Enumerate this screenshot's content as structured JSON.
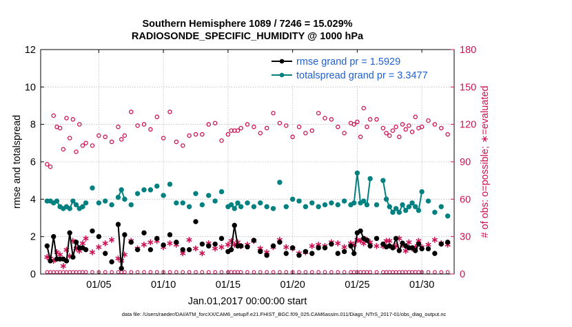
{
  "chart_data": {
    "type": "line",
    "title_line1": "Southern Hemisphere 1089 / 7246 = 15.029%",
    "title_line2": "RADIOSONDE_SPECIFIC_HUMIDITY @ 1000 hPa",
    "xlabel": "Jan.01,2017 00:00:00 start",
    "ylabel_left": "rmse and totalspread",
    "ylabel_right": "# of obs: o=possible; ∗=evaluated",
    "footer": "data file: /Users/raeder/DAI/ATM_forcXX/CAM6_setup/f.e21.FHIST_BGC.f09_025.CAM6assim.011/Diags_NTrS_2017-01/obs_diag_output.nc",
    "x_range_days": [
      0.5,
      32.5
    ],
    "y_left_range": [
      0,
      12
    ],
    "y_right_range": [
      0,
      180
    ],
    "x_ticks": [
      {
        "day": 5,
        "label": "01/05"
      },
      {
        "day": 10,
        "label": "01/10"
      },
      {
        "day": 15,
        "label": "01/15"
      },
      {
        "day": 20,
        "label": "01/20"
      },
      {
        "day": 25,
        "label": "01/25"
      },
      {
        "day": 30,
        "label": "01/30"
      }
    ],
    "y_left_ticks": [
      "0",
      "2",
      "4",
      "6",
      "8",
      "10",
      "12"
    ],
    "y_right_ticks": [
      "0",
      "30",
      "60",
      "90",
      "120",
      "150",
      "180"
    ],
    "legend": [
      {
        "label": "rmse grand pr = 1.5929",
        "color": "#000000"
      },
      {
        "label": "totalspread grand pr = 3.3477",
        "color": "#00807f"
      }
    ],
    "legend_placement": "top-right",
    "grid": true,
    "colors": {
      "rmse": "#000000",
      "totalspread": "#00807f",
      "obs": "#cc1155",
      "legend_text": "#1f5fd0",
      "right_axis": "#cc1155"
    },
    "series": [
      {
        "name": "rmse",
        "x": [
          1.0,
          1.25,
          1.5,
          1.75,
          2.0,
          2.25,
          2.5,
          2.75,
          3.0,
          3.25,
          3.5,
          3.75,
          4.0,
          4.5,
          5.0,
          5.5,
          6.0,
          6.5,
          6.75,
          7.0,
          7.5,
          8.0,
          8.5,
          9.0,
          9.5,
          10.0,
          10.5,
          11.0,
          11.5,
          12.0,
          12.5,
          13.0,
          13.5,
          14.0,
          14.5,
          15.0,
          15.25,
          15.5,
          15.75,
          16.0,
          16.5,
          17.0,
          17.5,
          18.0,
          18.5,
          19.0,
          19.5,
          20.0,
          20.5,
          21.0,
          21.5,
          22.0,
          22.5,
          23.0,
          23.5,
          24.0,
          24.5,
          24.75,
          25.0,
          25.25,
          25.5,
          25.75,
          26.0,
          26.5,
          27.0,
          27.25,
          27.5,
          27.75,
          28.0,
          28.25,
          28.5,
          28.75,
          29.0,
          29.25,
          29.5,
          29.75,
          30.0,
          30.5,
          31.0,
          31.5,
          32.0
        ],
        "y": [
          1.5,
          0.7,
          2.0,
          0.8,
          0.8,
          0.8,
          0.7,
          2.2,
          0.9,
          1.7,
          1.4,
          1.4,
          1.3,
          2.3,
          2.0,
          1.1,
          0.65,
          2.65,
          0.3,
          2.1,
          1.7,
          1.3,
          2.2,
          1.3,
          1.9,
          1.55,
          2.1,
          1.7,
          1.3,
          1.3,
          2.8,
          1.6,
          1.5,
          1.6,
          1.9,
          1.2,
          1.3,
          2.6,
          1.5,
          1.5,
          1.45,
          1.8,
          1.2,
          1.0,
          1.5,
          1.7,
          1.1,
          1.4,
          1.0,
          1.2,
          1.1,
          1.4,
          1.4,
          1.6,
          1.1,
          1.2,
          1.5,
          1.1,
          2.2,
          2.3,
          1.9,
          1.8,
          1.5,
          1.9,
          1.6,
          1.45,
          1.5,
          1.4,
          1.9,
          1.25,
          1.65,
          1.5,
          1.4,
          1.4,
          1.25,
          1.6,
          1.35,
          1.35,
          1.1,
          1.6,
          1.7
        ]
      },
      {
        "name": "totalspread",
        "x": [
          1.0,
          1.25,
          1.5,
          1.75,
          2.0,
          2.25,
          2.5,
          2.75,
          3.0,
          3.25,
          3.5,
          3.75,
          4.0,
          4.5,
          5.0,
          5.5,
          6.0,
          6.5,
          6.75,
          7.0,
          7.5,
          8.0,
          8.5,
          9.0,
          9.5,
          10.0,
          10.5,
          11.0,
          11.5,
          12.0,
          12.5,
          13.0,
          13.5,
          14.0,
          14.5,
          15.0,
          15.25,
          15.5,
          15.75,
          16.0,
          16.5,
          17.0,
          17.5,
          18.0,
          18.5,
          19.0,
          19.5,
          20.0,
          20.5,
          21.0,
          21.5,
          22.0,
          22.5,
          23.0,
          23.5,
          24.0,
          24.5,
          24.75,
          25.0,
          25.25,
          25.5,
          25.75,
          26.0,
          26.5,
          27.0,
          27.25,
          27.5,
          27.75,
          28.0,
          28.25,
          28.5,
          28.75,
          29.0,
          29.25,
          29.5,
          29.75,
          30.0,
          30.5,
          31.0,
          31.5,
          32.0
        ],
        "y": [
          3.9,
          3.9,
          3.8,
          3.9,
          3.6,
          3.5,
          3.6,
          3.5,
          3.9,
          3.7,
          3.5,
          3.6,
          3.8,
          4.6,
          3.8,
          3.9,
          3.7,
          4.1,
          4.5,
          4.0,
          3.7,
          4.3,
          4.5,
          4.5,
          4.7,
          4.2,
          4.8,
          3.8,
          3.8,
          3.6,
          4.3,
          3.7,
          4.2,
          3.9,
          4.4,
          3.6,
          3.7,
          3.5,
          3.8,
          3.6,
          3.8,
          3.6,
          3.8,
          3.6,
          3.5,
          4.9,
          3.6,
          4.0,
          3.9,
          3.6,
          3.8,
          3.6,
          3.7,
          3.8,
          3.7,
          3.9,
          3.7,
          3.8,
          5.4,
          3.8,
          3.9,
          3.7,
          5.1,
          3.7,
          5.0,
          4.0,
          3.6,
          3.3,
          3.5,
          3.3,
          3.7,
          3.4,
          3.6,
          3.8,
          3.6,
          3.4,
          4.4,
          3.9,
          3.3,
          3.6,
          3.1
        ]
      },
      {
        "name": "possible",
        "x": [
          1.0,
          1.25,
          1.5,
          1.75,
          2.0,
          2.25,
          2.5,
          2.75,
          3.0,
          3.25,
          3.5,
          3.75,
          4.0,
          4.5,
          5.0,
          5.5,
          6.0,
          6.5,
          6.75,
          7.0,
          7.5,
          8.0,
          8.5,
          9.0,
          9.5,
          10.0,
          10.5,
          11.0,
          11.5,
          12.0,
          12.5,
          13.0,
          13.5,
          14.0,
          14.5,
          15.0,
          15.25,
          15.5,
          15.75,
          16.0,
          16.5,
          17.0,
          17.5,
          18.0,
          18.5,
          19.0,
          19.5,
          20.0,
          20.5,
          21.0,
          21.5,
          22.0,
          22.5,
          23.0,
          23.5,
          24.0,
          24.5,
          24.75,
          25.0,
          25.25,
          25.5,
          25.75,
          26.0,
          26.5,
          27.0,
          27.25,
          27.5,
          27.75,
          28.0,
          28.25,
          28.5,
          28.75,
          29.0,
          29.25,
          29.5,
          29.75,
          30.0,
          30.5,
          31.0,
          31.5,
          32.0
        ],
        "y": [
          88,
          86,
          127,
          118,
          117,
          100,
          125,
          109,
          124,
          98,
          120,
          103,
          105,
          103,
          111,
          110,
          106,
          118,
          108,
          111,
          130,
          119,
          120,
          116,
          126,
          109,
          130,
          106,
          103,
          111,
          112,
          112,
          120,
          121,
          107,
          112,
          115,
          115,
          115,
          117,
          120,
          118,
          113,
          117,
          129,
          121,
          119,
          110,
          118,
          113,
          115,
          129,
          125,
          124,
          118,
          113,
          121,
          120,
          122,
          110,
          133,
          118,
          124,
          124,
          117,
          113,
          111,
          115,
          118,
          110,
          120,
          116,
          119,
          114,
          126,
          117,
          118,
          123,
          120,
          117,
          112
        ]
      },
      {
        "name": "evaluated",
        "x": [
          1.0,
          1.25,
          1.5,
          1.75,
          2.0,
          2.25,
          2.5,
          2.75,
          3.0,
          3.25,
          3.5,
          3.75,
          4.0,
          4.5,
          5.0,
          5.5,
          6.0,
          6.5,
          6.75,
          7.0,
          7.5,
          8.0,
          8.5,
          9.0,
          9.5,
          10.0,
          10.5,
          11.0,
          11.5,
          12.0,
          12.5,
          13.0,
          13.5,
          14.0,
          14.5,
          15.0,
          15.25,
          15.5,
          15.75,
          16.0,
          16.5,
          17.0,
          17.5,
          18.0,
          18.5,
          19.0,
          19.5,
          20.0,
          20.5,
          21.0,
          21.5,
          22.0,
          22.5,
          23.0,
          23.5,
          24.0,
          24.5,
          24.75,
          25.0,
          25.25,
          25.5,
          25.75,
          26.0,
          26.5,
          27.0,
          27.25,
          27.5,
          27.75,
          28.0,
          28.25,
          28.5,
          28.75,
          29.0,
          29.25,
          29.5,
          29.75,
          30.0,
          30.5,
          31.0,
          31.5,
          32.0
        ],
        "y": [
          14,
          13,
          11,
          18,
          16,
          7,
          20,
          15,
          27,
          21,
          19,
          25,
          29,
          18,
          22,
          25,
          28,
          13,
          11,
          16,
          27,
          21,
          24,
          26,
          27,
          22,
          25,
          24,
          17,
          28,
          21,
          17,
          25,
          21,
          22,
          24,
          27,
          24,
          26,
          23,
          24,
          27,
          21,
          18,
          22,
          28,
          22,
          21,
          17,
          18,
          23,
          24,
          23,
          26,
          25,
          22,
          25,
          24,
          28,
          27,
          25,
          28,
          26,
          23,
          23,
          27,
          27,
          22,
          23,
          29,
          24,
          19,
          26,
          21,
          22,
          27,
          22,
          24,
          28,
          25,
          24
        ]
      }
    ]
  }
}
